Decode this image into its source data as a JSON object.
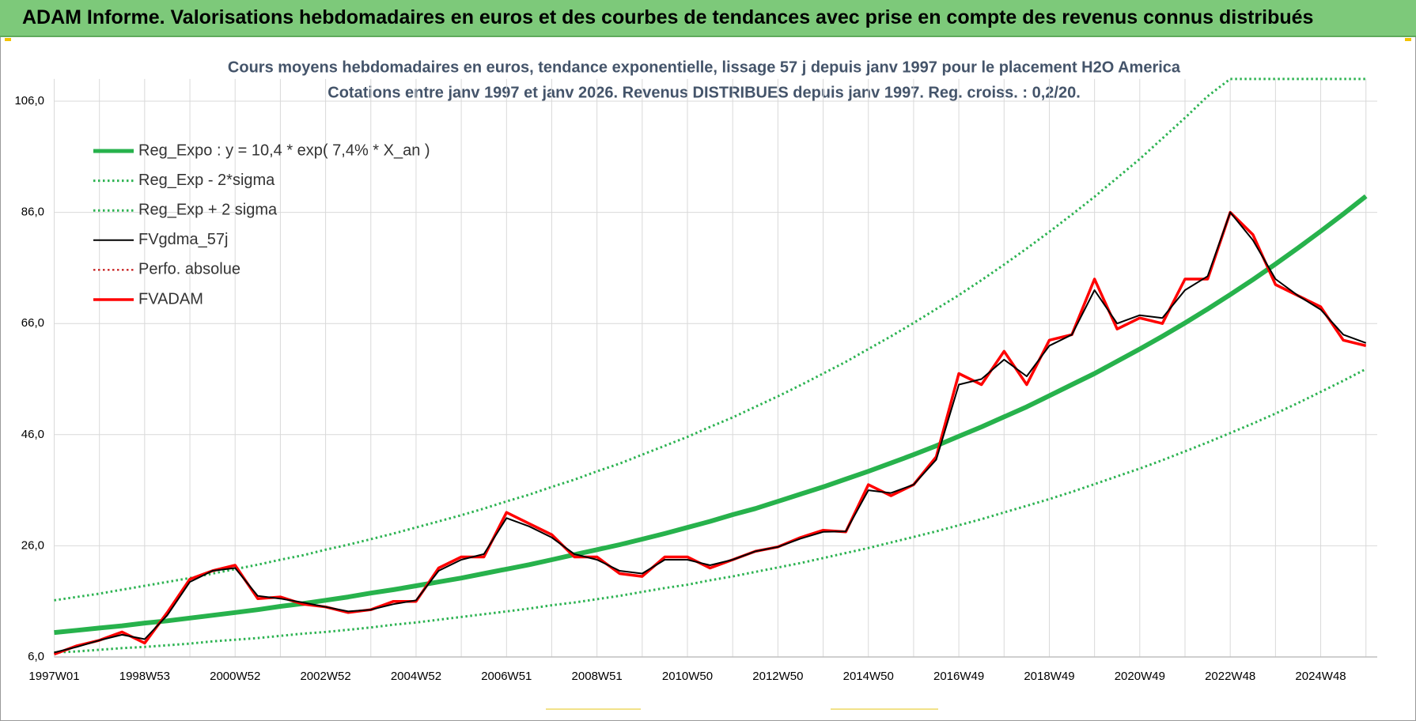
{
  "header": {
    "title": "ADAM Informe. Valorisations hebdomadaires en euros et des courbes de tendances avec prise en compte des revenus connus distribués"
  },
  "chart_data": {
    "type": "line",
    "title": "Cours moyens hebdomadaires en euros, tendance exponentielle, lissage 57 j depuis janv 1997 pour le placement H2O America",
    "subtitle": "Cotations entre janv 1997 et janv 2026. Revenus DISTRIBUES depuis janv 1997. Reg. croiss. : 0,2/20.",
    "categories": [
      "1997W01",
      null,
      null,
      null,
      "1998W53",
      null,
      null,
      null,
      "2000W52",
      null,
      null,
      null,
      "2002W52",
      null,
      null,
      null,
      "2004W52",
      null,
      null,
      null,
      "2006W51",
      null,
      null,
      null,
      "2008W51",
      null,
      null,
      null,
      "2010W50",
      null,
      null,
      null,
      "2012W50",
      null,
      null,
      null,
      "2014W50",
      null,
      null,
      null,
      "2016W49",
      null,
      null,
      null,
      "2018W49",
      null,
      null,
      null,
      "2020W49",
      null,
      null,
      null,
      "2022W48",
      null,
      null,
      null,
      "2024W48",
      null,
      null
    ],
    "ylim": [
      6,
      110
    ],
    "yticks": [
      {
        "value": 6,
        "label": "6,0"
      },
      {
        "value": 26,
        "label": "26,0"
      },
      {
        "value": 46,
        "label": "46,0"
      },
      {
        "value": 66,
        "label": "66,0"
      },
      {
        "value": 86,
        "label": "86,0"
      },
      {
        "value": 106,
        "label": "106,0"
      }
    ],
    "grid": true,
    "legend": "upper-left",
    "series": [
      {
        "name": "Reg_Expo : y = 10,4 * exp( 7,4% *  X_an )",
        "color": "#27b24c",
        "style": "solid",
        "width": 6,
        "values": [
          10.4,
          10.8,
          11.2,
          11.6,
          12.1,
          12.5,
          13.0,
          13.5,
          14.0,
          14.5,
          15.1,
          15.6,
          16.2,
          16.8,
          17.5,
          18.1,
          18.8,
          19.5,
          20.2,
          21.0,
          21.8,
          22.6,
          23.5,
          24.4,
          25.3,
          26.2,
          27.2,
          28.2,
          29.3,
          30.4,
          31.6,
          32.7,
          34.0,
          35.3,
          36.6,
          38.0,
          39.4,
          40.9,
          42.4,
          44.0,
          45.7,
          47.4,
          49.2,
          51.0,
          53.0,
          55.0,
          57.0,
          59.2,
          61.4,
          63.7,
          66.1,
          68.6,
          71.2,
          73.9,
          76.7,
          79.6,
          82.6,
          85.7,
          88.9
        ]
      },
      {
        "name": "Reg_Exp - 2*sigma",
        "color": "#2db352",
        "style": "dotted",
        "width": 3,
        "values": [
          6.8,
          7.0,
          7.3,
          7.6,
          7.8,
          8.1,
          8.4,
          8.8,
          9.1,
          9.4,
          9.8,
          10.2,
          10.5,
          10.9,
          11.3,
          11.8,
          12.2,
          12.7,
          13.2,
          13.7,
          14.2,
          14.7,
          15.3,
          15.8,
          16.4,
          17.0,
          17.7,
          18.4,
          19.0,
          19.8,
          20.5,
          21.3,
          22.1,
          22.9,
          23.8,
          24.7,
          25.6,
          26.6,
          27.6,
          28.6,
          29.7,
          30.8,
          32.0,
          33.2,
          34.4,
          35.7,
          37.1,
          38.5,
          39.9,
          41.4,
          43.0,
          44.6,
          46.3,
          48.0,
          49.8,
          51.7,
          53.7,
          55.7,
          57.8
        ]
      },
      {
        "name": "Reg_Exp + 2 sigma",
        "color": "#2db352",
        "style": "dotted",
        "width": 3,
        "values": [
          16.2,
          16.8,
          17.4,
          18.1,
          18.8,
          19.5,
          20.2,
          21.0,
          21.8,
          22.6,
          23.5,
          24.3,
          25.3,
          26.2,
          27.2,
          28.2,
          29.3,
          30.4,
          31.5,
          32.7,
          34.0,
          35.2,
          36.6,
          37.9,
          39.4,
          40.8,
          42.4,
          44.0,
          45.6,
          47.4,
          49.1,
          51.0,
          52.9,
          54.9,
          57.0,
          59.1,
          61.4,
          63.7,
          66.1,
          68.6,
          71.1,
          73.8,
          76.6,
          79.5,
          82.5,
          85.6,
          88.8,
          92.2,
          95.6,
          99.3,
          103.0,
          106.9,
          110,
          110,
          110,
          110,
          110,
          110,
          110
        ]
      },
      {
        "name": "FVgdma_57j",
        "color": "#000000",
        "style": "solid",
        "width": 2,
        "values": [
          6.8,
          7.8,
          9,
          10,
          9.2,
          13.5,
          19.5,
          21.5,
          22,
          17,
          16.5,
          15.8,
          15,
          14.2,
          14.5,
          15.5,
          16.2,
          21.5,
          23.5,
          24.5,
          31,
          29.5,
          27.5,
          24.5,
          23.5,
          21.5,
          21,
          23.5,
          23.5,
          22.5,
          23.5,
          25,
          25.8,
          27.3,
          28.5,
          28.6,
          36,
          35.5,
          37,
          41.5,
          55,
          56,
          59.5,
          56.5,
          62,
          64,
          72,
          66,
          67.5,
          67,
          72,
          74.5,
          86,
          81,
          74,
          71,
          68.5,
          64,
          62.5
        ]
      },
      {
        "name": "Perfo. absolue",
        "color": "#c00000",
        "style": "dotted",
        "width": 2,
        "values": [
          null,
          null,
          null,
          null,
          null,
          null,
          null,
          null,
          null,
          null,
          null,
          null,
          null,
          null,
          null,
          null,
          null,
          null,
          null,
          null,
          null,
          null,
          null,
          null,
          null,
          null,
          null,
          null,
          null,
          null,
          null,
          null,
          null,
          null,
          null,
          null,
          null,
          null,
          null,
          null,
          null,
          null,
          null,
          null,
          null,
          null,
          null,
          null,
          null,
          null,
          null,
          null,
          null,
          null,
          null,
          null,
          null,
          null,
          null
        ]
      },
      {
        "name": "FVADAM",
        "color": "#ff0000",
        "style": "solid",
        "width": 3.5,
        "values": [
          6.5,
          8,
          9,
          10.5,
          8.5,
          14,
          20,
          21.5,
          22.5,
          16.5,
          16.8,
          15.5,
          15,
          14,
          14.5,
          16,
          16,
          22,
          24,
          24,
          32,
          30,
          28,
          24,
          24,
          21,
          20.5,
          24,
          24,
          22,
          23.5,
          25,
          25.8,
          27.5,
          28.8,
          28.5,
          37,
          35,
          37,
          42,
          57,
          55,
          61,
          55,
          63,
          64,
          74,
          65,
          67,
          66,
          74,
          74,
          86,
          82,
          73,
          71,
          69,
          63,
          62
        ]
      }
    ]
  }
}
